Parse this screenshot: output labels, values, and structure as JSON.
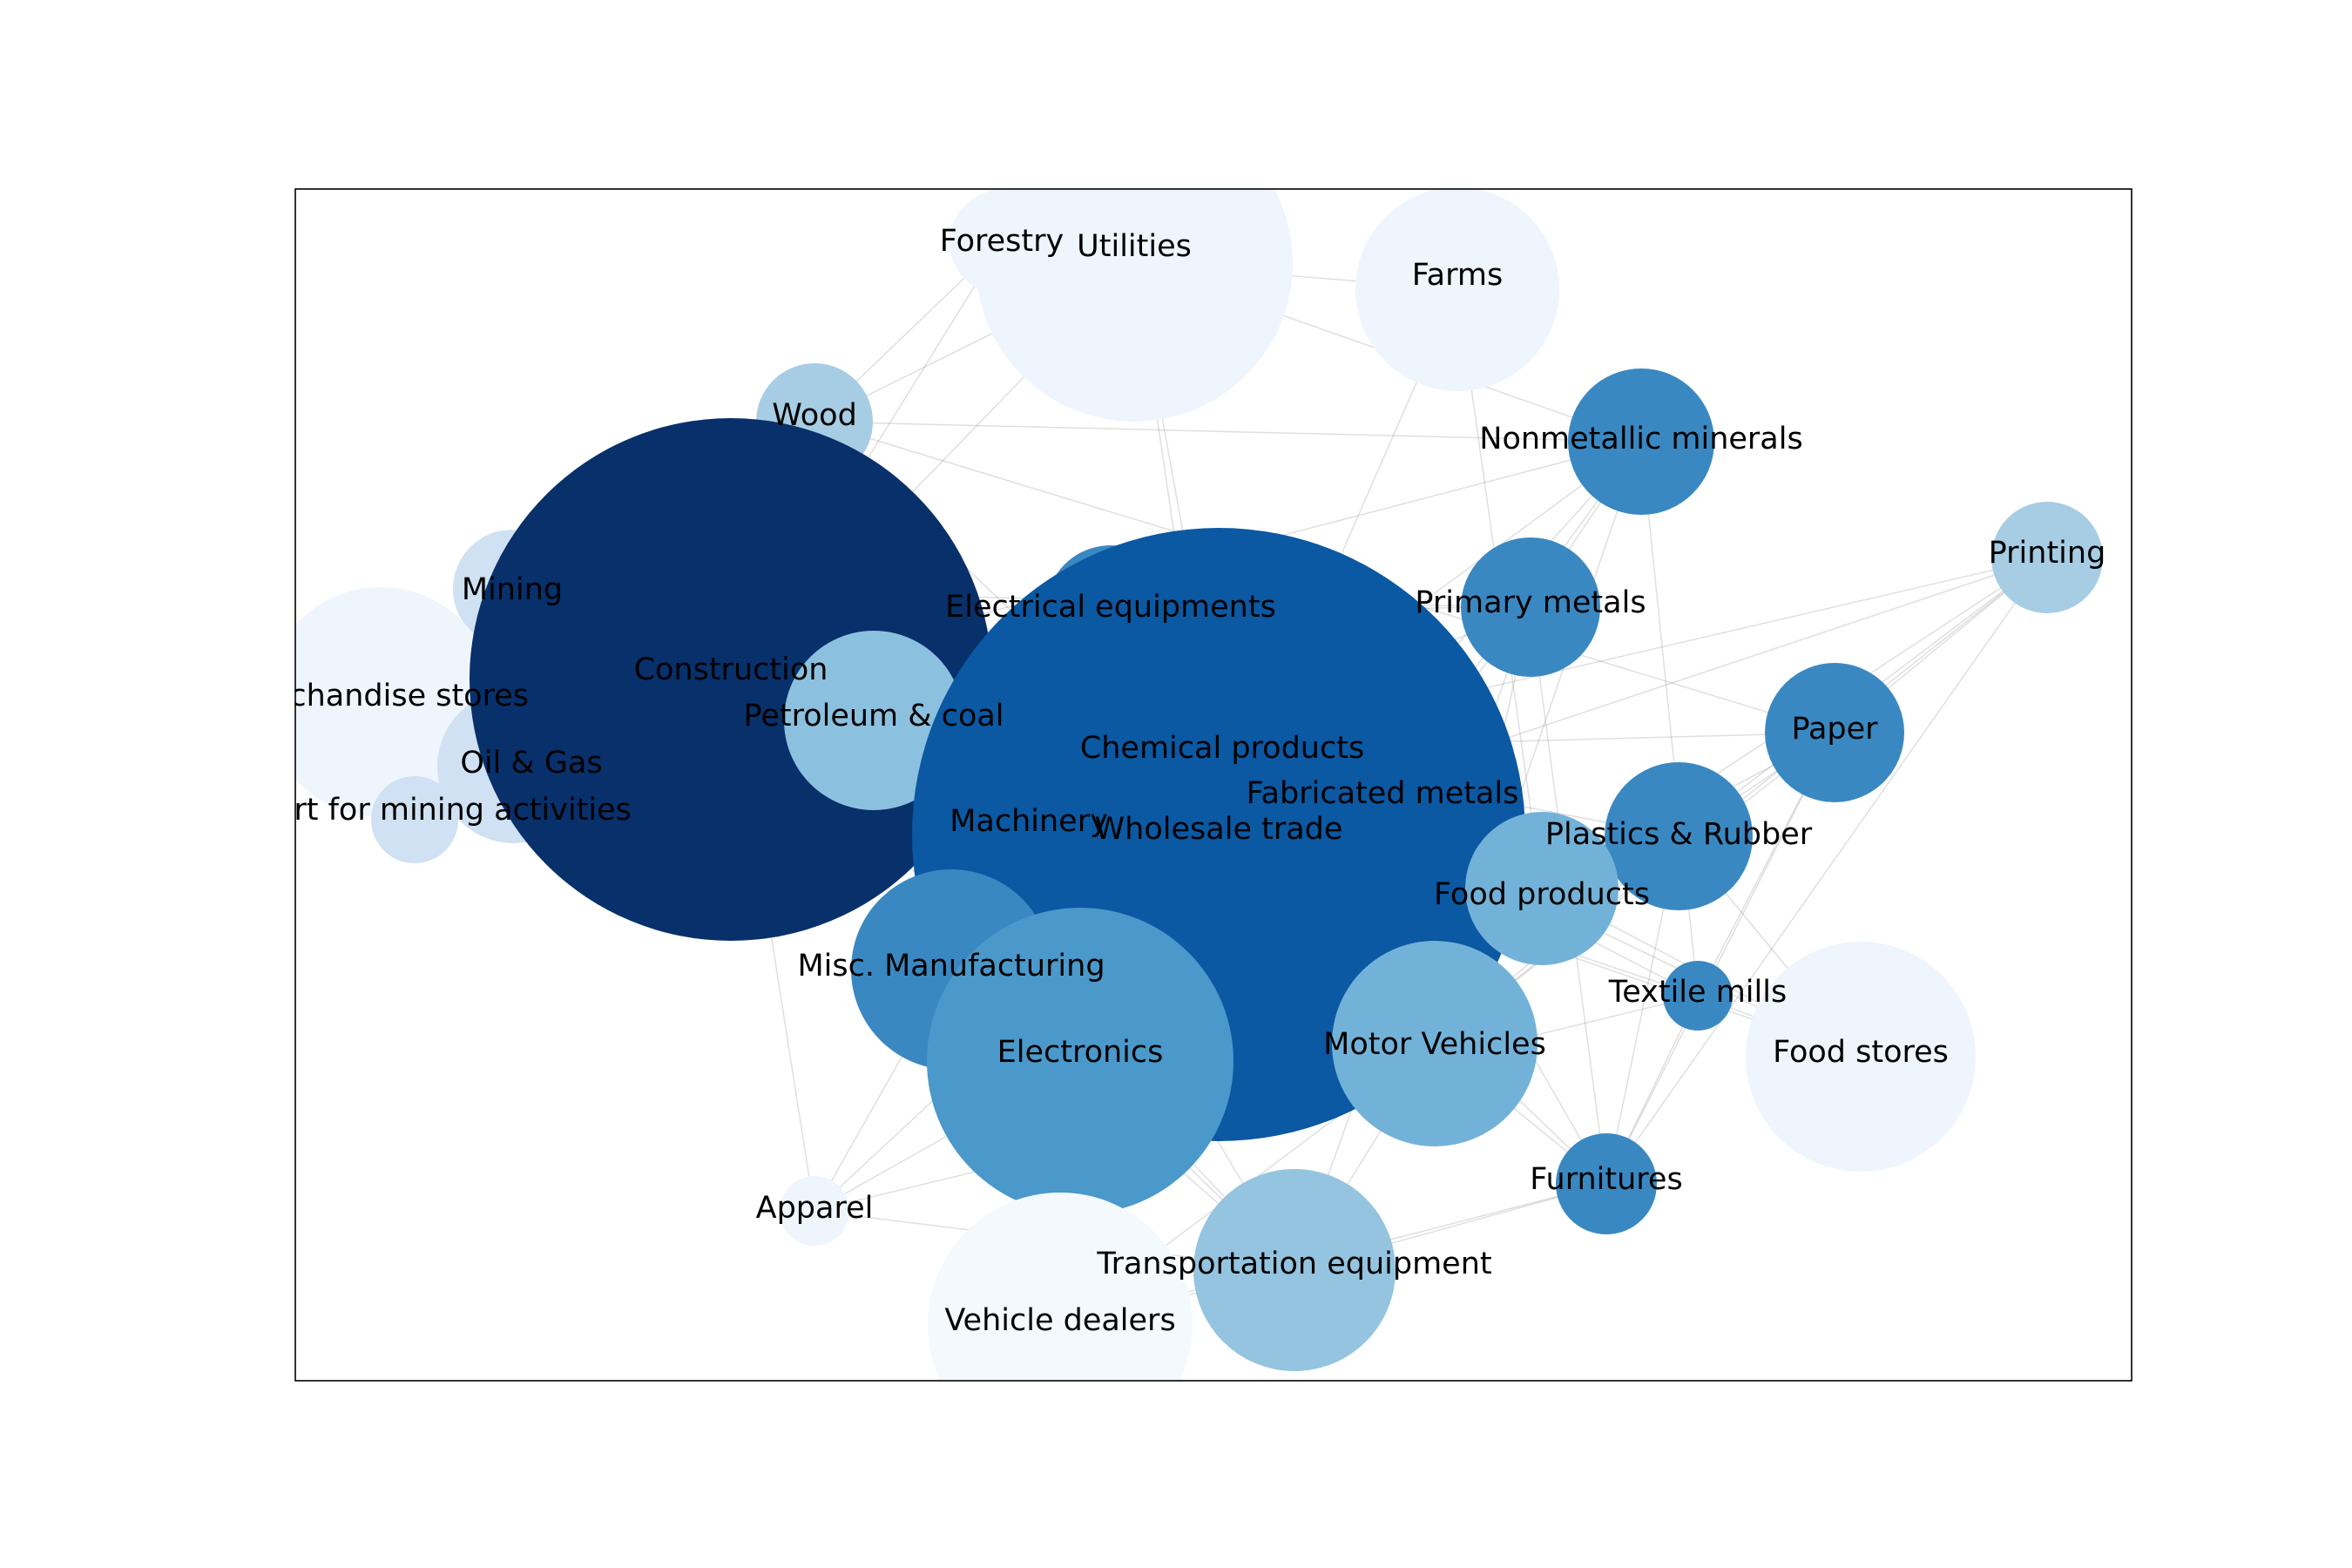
{
  "nodes": [
    {
      "id": "forestry",
      "label": "Forestry",
      "color": "#eef5fd"
    },
    {
      "id": "utilities",
      "label": "Utilities",
      "color": "#eef5fd"
    },
    {
      "id": "farms",
      "label": "Farms",
      "color": "#eef5fd"
    },
    {
      "id": "wood",
      "label": "Wood",
      "color": "#a6cde4"
    },
    {
      "id": "nonmetallic-minerals",
      "label": "Nonmetallic minerals",
      "color": "#3a88c2"
    },
    {
      "id": "printing",
      "label": "Printing",
      "color": "#a6cde4"
    },
    {
      "id": "mining",
      "label": "Mining",
      "color": "#cfe1f2"
    },
    {
      "id": "merchandise-stores",
      "label": "Merchandise stores",
      "color": "#eef5fd"
    },
    {
      "id": "oil-gas",
      "label": "Oil & Gas",
      "color": "#cfe1f2"
    },
    {
      "id": "support-mining",
      "label": "Support for mining activities",
      "color": "#cfe1f2"
    },
    {
      "id": "construction",
      "label": "Construction",
      "color": "#08306b"
    },
    {
      "id": "electrical-equipments",
      "label": "Electrical equipments",
      "color": "#3a88c2"
    },
    {
      "id": "primary-metals",
      "label": "Primary metals",
      "color": "#3a88c2"
    },
    {
      "id": "petroleum-coal",
      "label": "Petroleum & coal",
      "color": "#8cc0df"
    },
    {
      "id": "chemical-products",
      "label": "Chemical products",
      "color": "#0b58a3"
    },
    {
      "id": "paper",
      "label": "Paper",
      "color": "#3a88c2"
    },
    {
      "id": "fabricated-metals",
      "label": "Fabricated metals",
      "color": "#0b58a3"
    },
    {
      "id": "machinery",
      "label": "Machinery",
      "color": "#0b58a3"
    },
    {
      "id": "wholesale-trade",
      "label": "Wholesale trade",
      "color": "#0b58a3"
    },
    {
      "id": "plastics-rubber",
      "label": "Plastics & Rubber",
      "color": "#3a88c2"
    },
    {
      "id": "food-products",
      "label": "Food products",
      "color": "#73b2d8"
    },
    {
      "id": "misc-manufacturing",
      "label": "Misc. Manufacturing",
      "color": "#3a88c2"
    },
    {
      "id": "textile-mills",
      "label": "Textile mills",
      "color": "#3a88c2"
    },
    {
      "id": "electronics",
      "label": "Electronics",
      "color": "#4b98ca"
    },
    {
      "id": "motor-vehicles",
      "label": "Motor Vehicles",
      "color": "#73b2d8"
    },
    {
      "id": "food-stores",
      "label": "Food stores",
      "color": "#eef5fd"
    },
    {
      "id": "furnitures",
      "label": "Furnitures",
      "color": "#3a88c2"
    },
    {
      "id": "apparel",
      "label": "Apparel",
      "color": "#eef5fd"
    },
    {
      "id": "transportation-equipment",
      "label": "Transportation equipment",
      "color": "#94c4df"
    },
    {
      "id": "vehicle-dealers",
      "label": "Vehicle dealers",
      "color": "#f4f9fe"
    }
  ],
  "edges": [
    [
      "utilities",
      "construction"
    ],
    [
      "utilities",
      "wholesale-trade"
    ],
    [
      "utilities",
      "chemical-products"
    ],
    [
      "utilities",
      "nonmetallic-minerals"
    ],
    [
      "utilities",
      "farms"
    ],
    [
      "utilities",
      "wood"
    ],
    [
      "forestry",
      "wood"
    ],
    [
      "forestry",
      "construction"
    ],
    [
      "farms",
      "food-products"
    ],
    [
      "farms",
      "wholesale-trade"
    ],
    [
      "wood",
      "construction"
    ],
    [
      "wood",
      "furnitures"
    ],
    [
      "wood",
      "nonmetallic-minerals"
    ],
    [
      "wood",
      "paper"
    ],
    [
      "nonmetallic-minerals",
      "construction"
    ],
    [
      "nonmetallic-minerals",
      "chemical-products"
    ],
    [
      "nonmetallic-minerals",
      "primary-metals"
    ],
    [
      "nonmetallic-minerals",
      "motor-vehicles"
    ],
    [
      "nonmetallic-minerals",
      "fabricated-metals"
    ],
    [
      "nonmetallic-minerals",
      "electronics"
    ],
    [
      "nonmetallic-minerals",
      "textile-mills"
    ],
    [
      "printing",
      "paper"
    ],
    [
      "printing",
      "chemical-products"
    ],
    [
      "printing",
      "wholesale-trade"
    ],
    [
      "printing",
      "plastics-rubber"
    ],
    [
      "printing",
      "food-products"
    ],
    [
      "printing",
      "motor-vehicles"
    ],
    [
      "printing",
      "furnitures"
    ],
    [
      "mining",
      "construction"
    ],
    [
      "mining",
      "petroleum-coal"
    ],
    [
      "mining",
      "primary-metals"
    ],
    [
      "oil-gas",
      "petroleum-coal"
    ],
    [
      "oil-gas",
      "construction"
    ],
    [
      "support-mining",
      "oil-gas"
    ],
    [
      "support-mining",
      "construction"
    ],
    [
      "merchandise-stores",
      "construction"
    ],
    [
      "merchandise-stores",
      "wholesale-trade"
    ],
    [
      "construction",
      "chemical-products"
    ],
    [
      "construction",
      "misc-manufacturing"
    ],
    [
      "construction",
      "apparel"
    ],
    [
      "construction",
      "transportation-equipment"
    ],
    [
      "electrical-equipments",
      "primary-metals"
    ],
    [
      "electrical-equipments",
      "construction"
    ],
    [
      "primary-metals",
      "fabricated-metals"
    ],
    [
      "primary-metals",
      "motor-vehicles"
    ],
    [
      "primary-metals",
      "furnitures"
    ],
    [
      "primary-metals",
      "transportation-equipment"
    ],
    [
      "petroleum-coal",
      "chemical-products"
    ],
    [
      "chemical-products",
      "plastics-rubber"
    ],
    [
      "chemical-products",
      "paper"
    ],
    [
      "chemical-products",
      "textile-mills"
    ],
    [
      "chemical-products",
      "food-stores"
    ],
    [
      "paper",
      "plastics-rubber"
    ],
    [
      "paper",
      "food-products"
    ],
    [
      "paper",
      "textile-mills"
    ],
    [
      "paper",
      "motor-vehicles"
    ],
    [
      "paper",
      "furnitures"
    ],
    [
      "fabricated-metals",
      "furnitures"
    ],
    [
      "plastics-rubber",
      "motor-vehicles"
    ],
    [
      "plastics-rubber",
      "food-stores"
    ],
    [
      "plastics-rubber",
      "furnitures"
    ],
    [
      "food-products",
      "food-stores"
    ],
    [
      "textile-mills",
      "apparel"
    ],
    [
      "textile-mills",
      "furnitures"
    ],
    [
      "electronics",
      "apparel"
    ],
    [
      "electronics",
      "transportation-equipment"
    ],
    [
      "motor-vehicles",
      "vehicle-dealers"
    ],
    [
      "motor-vehicles",
      "transportation-equipment"
    ],
    [
      "motor-vehicles",
      "furnitures"
    ],
    [
      "misc-manufacturing",
      "apparel"
    ],
    [
      "transportation-equipment",
      "vehicle-dealers"
    ],
    [
      "transportation-equipment",
      "furnitures"
    ],
    [
      "transportation-equipment",
      "apparel"
    ],
    [
      "vehicle-dealers",
      "electronics"
    ],
    [
      "vehicle-dealers",
      "furnitures"
    ],
    [
      "wholesale-trade",
      "food-stores"
    ],
    [
      "wholesale-trade",
      "textile-mills"
    ],
    [
      "wholesale-trade",
      "apparel"
    ],
    [
      "machinery",
      "transportation-equipment"
    ],
    [
      "machinery",
      "primary-metals"
    ],
    [
      "misc-manufacturing",
      "transportation-equipment"
    ],
    [
      "food-stores",
      "textile-mills"
    ]
  ]
}
